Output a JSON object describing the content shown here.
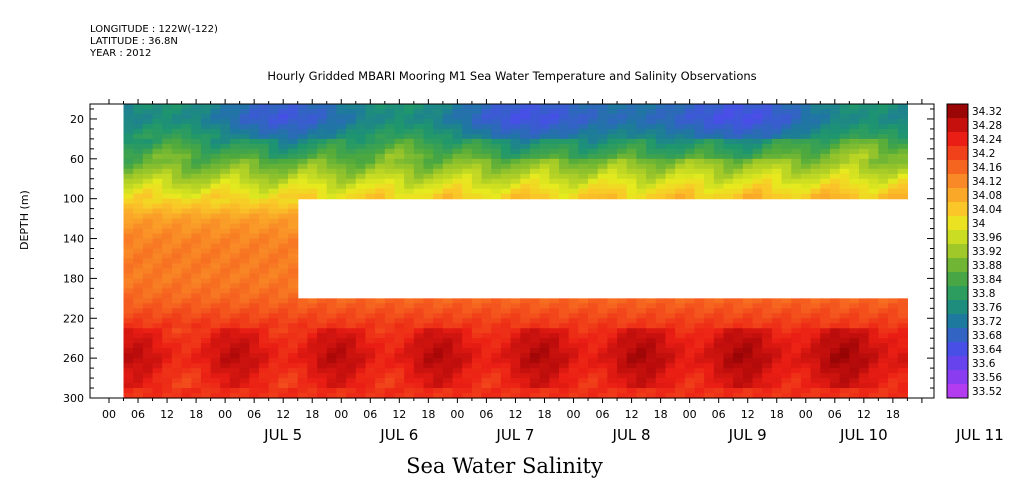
{
  "meta": {
    "longitude": "LONGITUDE : 122W(-122)",
    "latitude": "LATITUDE : 36.8N",
    "year": "YEAR : 2012"
  },
  "chart_data": {
    "type": "heatmap",
    "title": "Hourly Gridded MBARI Mooring M1 Sea Water Temperature and Salinity Observations",
    "footer": "Sea Water Salinity",
    "ylabel": "DEPTH (m)",
    "ylim": [
      0,
      300
    ],
    "y_inverted": true,
    "y_ticks": [
      20,
      60,
      100,
      140,
      180,
      220,
      260,
      300
    ],
    "x_hour_ticks": [
      "00",
      "06",
      "12",
      "18",
      "00",
      "06",
      "12",
      "18",
      "00",
      "06",
      "12",
      "18",
      "00",
      "06",
      "12",
      "18",
      "00",
      "06",
      "12",
      "18",
      "00",
      "06",
      "12",
      "18",
      "00",
      "06",
      "12",
      "18"
    ],
    "x_day_labels": [
      "JUL 5",
      "JUL 6",
      "JUL 7",
      "JUL 8",
      "JUL 9",
      "JUL 10",
      "JUL 11"
    ],
    "colorbar_ticks": [
      "34.32",
      "34.28",
      "34.24",
      "34.2",
      "34.16",
      "34.12",
      "34.08",
      "34.04",
      "34",
      "33.96",
      "33.92",
      "33.88",
      "33.84",
      "33.8",
      "33.76",
      "33.72",
      "33.68",
      "33.64",
      "33.6",
      "33.56",
      "33.52"
    ],
    "colorbar_range": [
      33.52,
      34.34
    ],
    "data_start_hour": 3,
    "data_end_hour": 165,
    "gap": {
      "depth_range": [
        100,
        200
      ],
      "from_hour": 38
    },
    "depth_profile": [
      {
        "depth": 5,
        "value": 33.74
      },
      {
        "depth": 20,
        "value": 33.72
      },
      {
        "depth": 40,
        "value": 33.78
      },
      {
        "depth": 60,
        "value": 33.86
      },
      {
        "depth": 80,
        "value": 33.94
      },
      {
        "depth": 100,
        "value": 34.02
      },
      {
        "depth": 120,
        "value": 34.1
      },
      {
        "depth": 140,
        "value": 34.13
      },
      {
        "depth": 160,
        "value": 34.14
      },
      {
        "depth": 180,
        "value": 34.14
      },
      {
        "depth": 200,
        "value": 34.16
      },
      {
        "depth": 220,
        "value": 34.2
      },
      {
        "depth": 240,
        "value": 34.24
      },
      {
        "depth": 260,
        "value": 34.26
      },
      {
        "depth": 280,
        "value": 34.23
      },
      {
        "depth": 300,
        "value": 34.22
      }
    ]
  }
}
